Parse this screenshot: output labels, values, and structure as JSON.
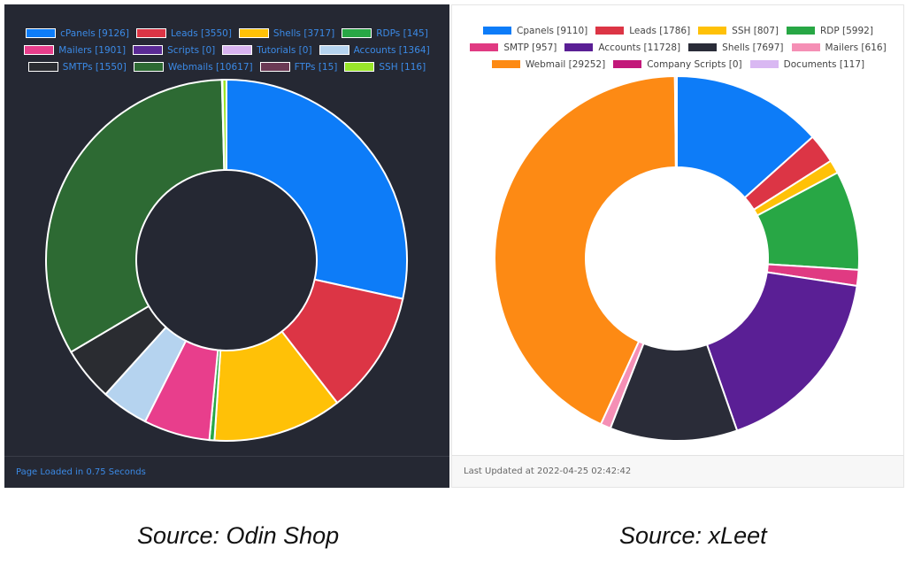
{
  "chart_data": [
    {
      "type": "pie",
      "style": "donut",
      "theme": "dark",
      "legend_position": "top",
      "categories": [
        "cPanels",
        "Leads",
        "Shells",
        "RDPs",
        "Mailers",
        "Scripts",
        "Tutorials",
        "Accounts",
        "SMTPs",
        "Webmails",
        "FTPs",
        "SSH"
      ],
      "values": [
        9126,
        3550,
        3717,
        145,
        1901,
        0,
        0,
        1364,
        1550,
        10617,
        15,
        116
      ],
      "labels": [
        "cPanels [9126]",
        "Leads [3550]",
        "Shells [3717]",
        "RDPs [145]",
        "Mailers [1901]",
        "Scripts [0]",
        "Tutorials [0]",
        "Accounts [1364]",
        "SMTPs [1550]",
        "Webmails [10617]",
        "FTPs [15]",
        "SSH [116]"
      ],
      "colors": [
        "#0d7cf8",
        "#dc3545",
        "#ffc107",
        "#28a745",
        "#e83e8c",
        "#5a2a95",
        "#d8b4f0",
        "#b5d3ef",
        "#2a2c31",
        "#2d6a33",
        "#6b3a55",
        "#9ae62a"
      ],
      "legend_rows": [
        4,
        4,
        4
      ],
      "footer": "Page Loaded in 0.75 Seconds",
      "source_caption": "Source: Odin Shop"
    },
    {
      "type": "pie",
      "style": "donut",
      "theme": "light",
      "legend_position": "top",
      "categories": [
        "Cpanels",
        "Leads",
        "SSH",
        "RDP",
        "SMTP",
        "Accounts",
        "Shells",
        "Mailers",
        "Webmail",
        "Company Scripts",
        "Documents"
      ],
      "values": [
        9110,
        1786,
        807,
        5992,
        957,
        11728,
        7697,
        616,
        29252,
        0,
        117
      ],
      "labels": [
        "Cpanels [9110]",
        "Leads [1786]",
        "SSH [807]",
        "RDP [5992]",
        "SMTP [957]",
        "Accounts [11728]",
        "Shells [7697]",
        "Mailers [616]",
        "Webmail [29252]",
        "Company Scripts [0]",
        "Documents [117]"
      ],
      "colors": [
        "#0d7cf8",
        "#dc3545",
        "#ffc107",
        "#28a745",
        "#e03a82",
        "#5a1f95",
        "#2a2c38",
        "#f58fb5",
        "#fd8a14",
        "#c2187a",
        "#d9b8f2"
      ],
      "legend_rows": [
        4,
        4,
        3
      ],
      "footer": "Last Updated at 2022-04-25 02:42:42",
      "source_caption": "Source: xLeet"
    }
  ]
}
